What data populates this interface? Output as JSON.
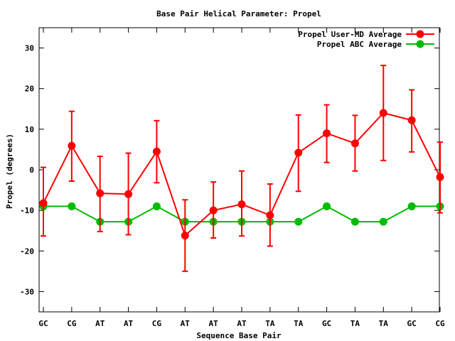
{
  "chart_data": {
    "type": "line",
    "title": "Base Pair Helical Parameter: Propel",
    "xlabel": "Sequence Base Pair",
    "ylabel": "Propel (degrees)",
    "ylim": [
      -35,
      35
    ],
    "yticks": [
      -30,
      -20,
      -10,
      0,
      10,
      20,
      30
    ],
    "categories": [
      "GC",
      "CG",
      "AT",
      "AT",
      "CG",
      "AT",
      "AT",
      "AT",
      "TA",
      "TA",
      "GC",
      "TA",
      "TA",
      "GC",
      "CG"
    ],
    "grid": false,
    "legend_position": "top-right",
    "series": [
      {
        "name": "Propel User-MD Average",
        "color": "#ff0000",
        "values": [
          -8.2,
          5.9,
          -5.8,
          -6.0,
          4.5,
          -16.2,
          -10.0,
          -8.5,
          -11.2,
          4.2,
          9.0,
          6.5,
          14.0,
          12.2,
          -1.8
        ],
        "err_low": [
          -16.3,
          -2.8,
          -15.2,
          -16.0,
          -3.2,
          -25.0,
          -16.8,
          -16.3,
          -18.8,
          -5.3,
          1.8,
          -0.3,
          2.3,
          4.4,
          -10.6
        ],
        "err_high": [
          0.6,
          14.4,
          3.3,
          4.1,
          12.1,
          -7.4,
          -3.0,
          -0.3,
          -3.5,
          13.5,
          16.0,
          13.4,
          25.7,
          19.7,
          6.8
        ]
      },
      {
        "name": "Propel ABC Average",
        "color": "#00bb00",
        "values": [
          -9.0,
          -9.0,
          -12.8,
          -12.8,
          -9.0,
          -12.8,
          -12.8,
          -12.8,
          -12.8,
          -12.8,
          -9.0,
          -12.8,
          -12.8,
          -9.0,
          -9.0
        ]
      }
    ]
  }
}
